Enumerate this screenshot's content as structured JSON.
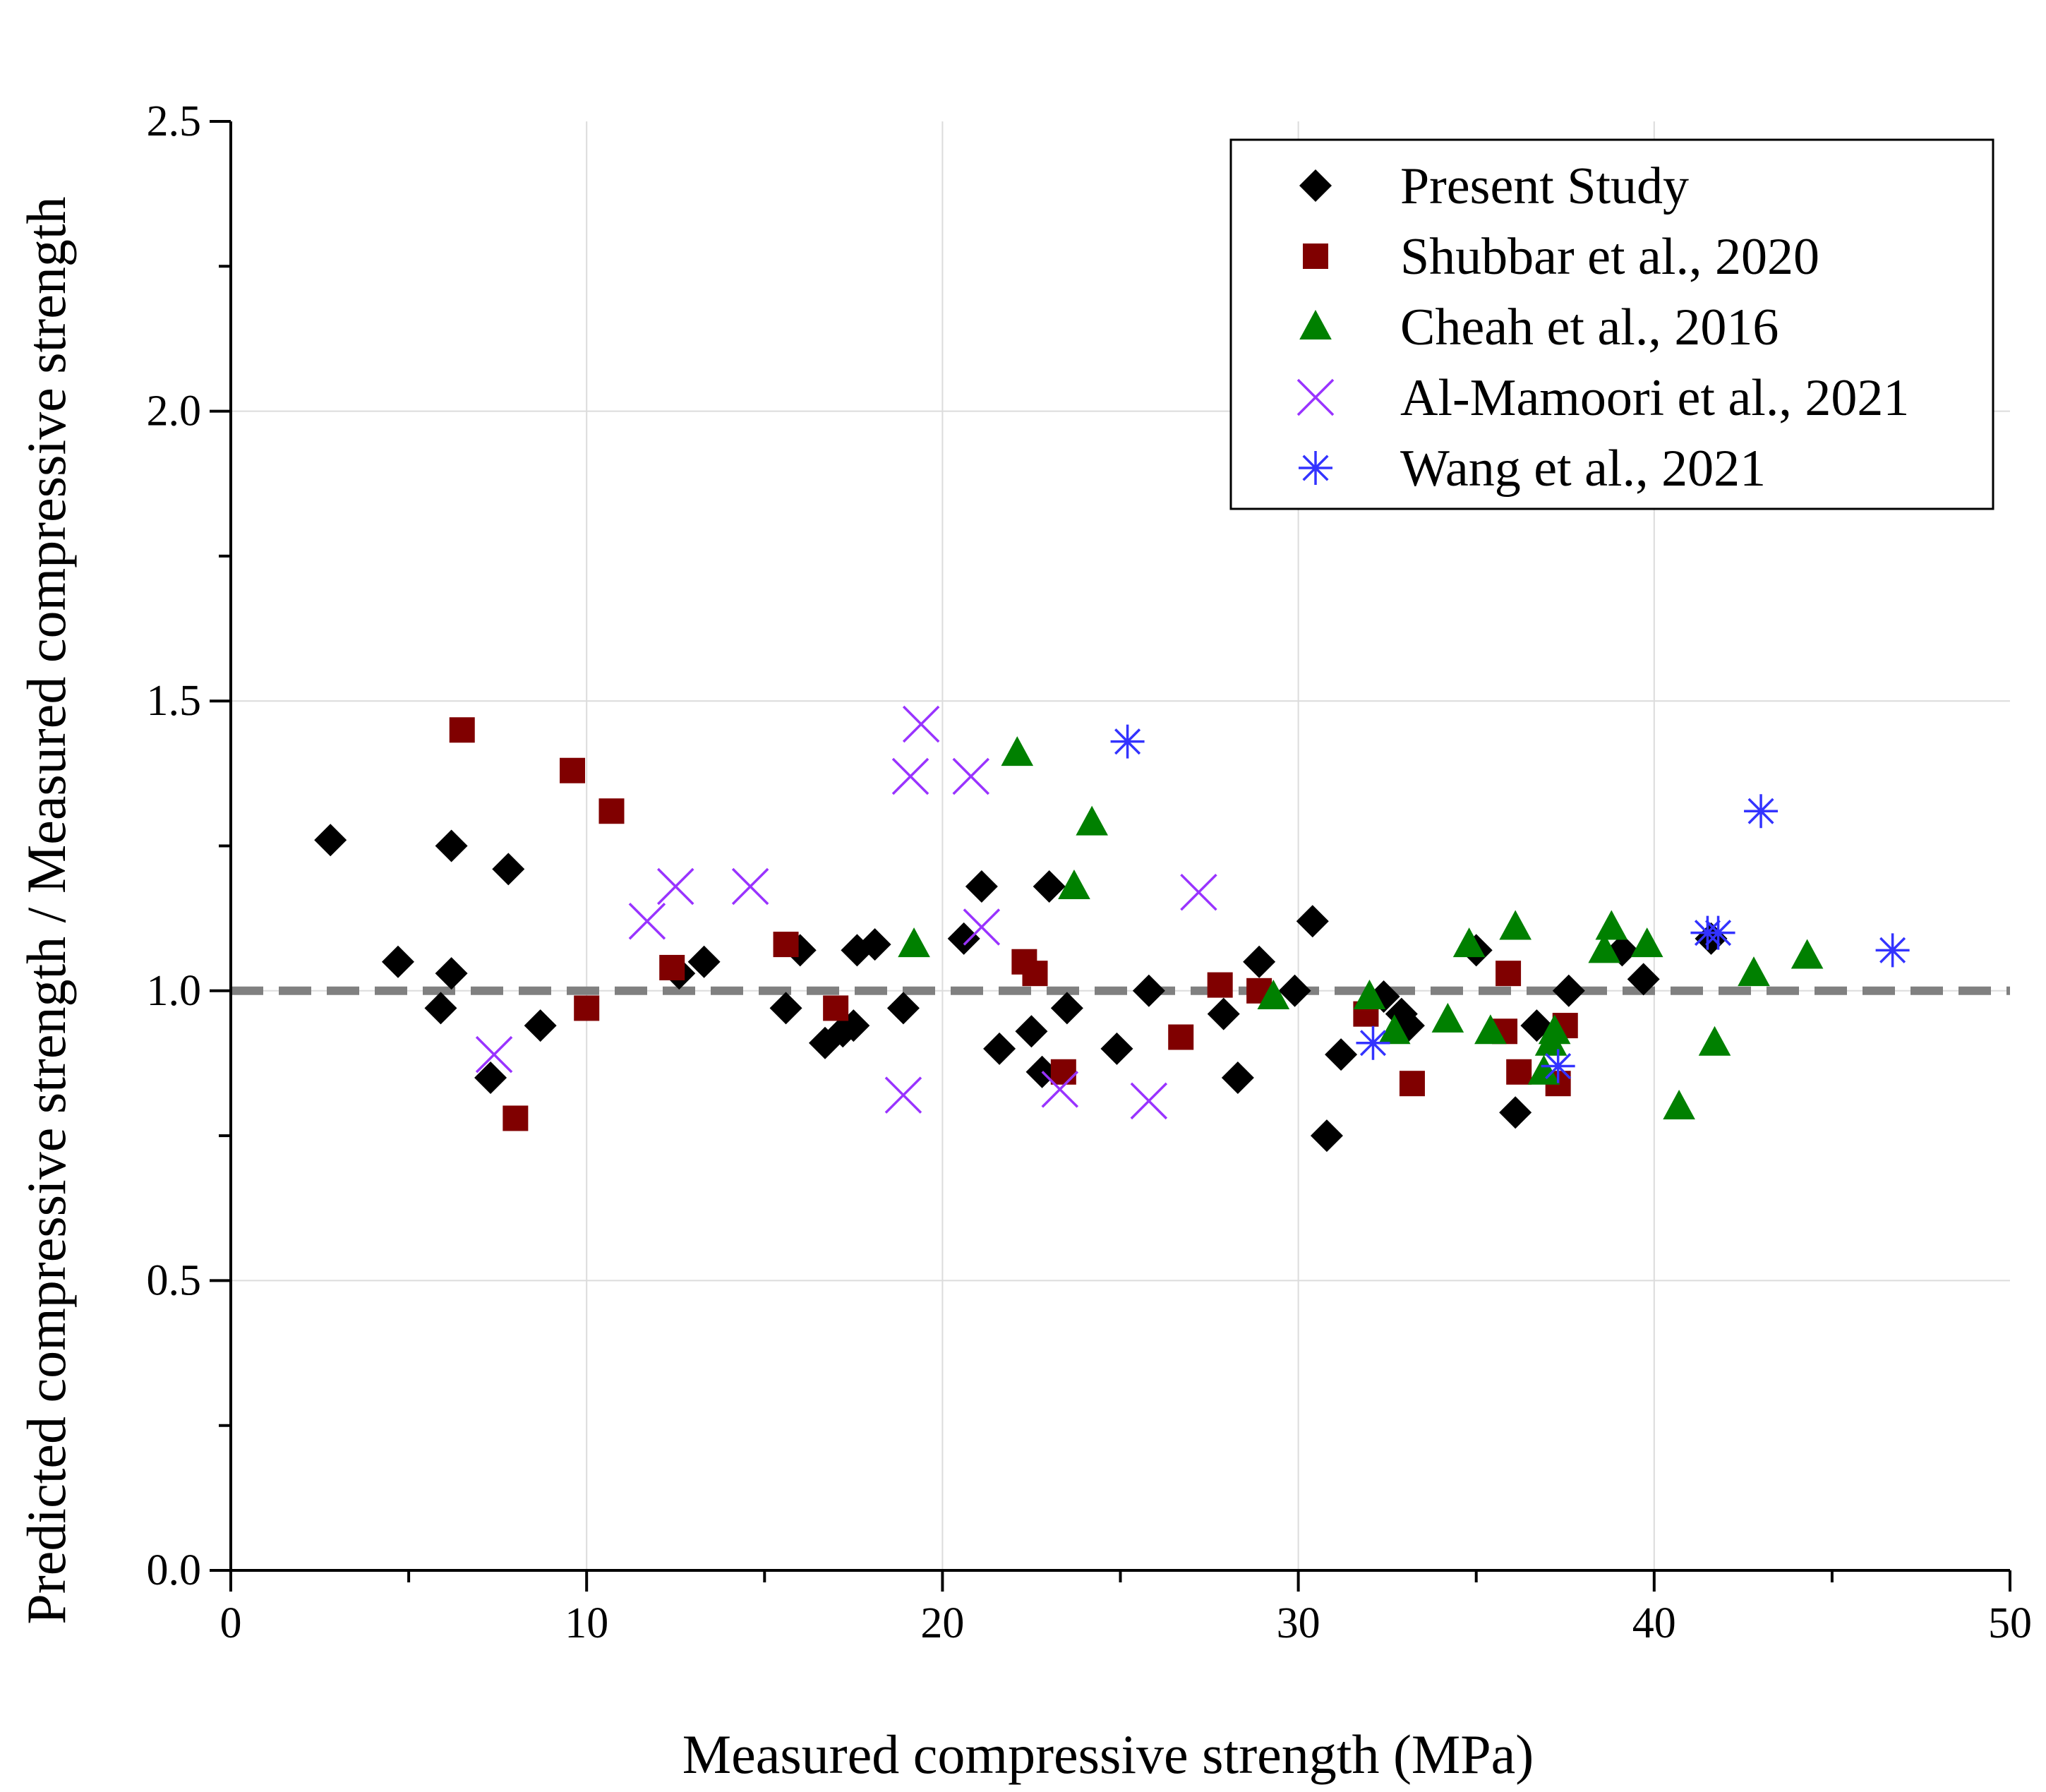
{
  "chart_data": {
    "type": "scatter",
    "title": "",
    "xlabel": "Measured compressive strength (MPa)",
    "ylabel": "Predicted compressive strength / Measured compressive strength",
    "xlim": [
      0,
      50
    ],
    "ylim": [
      0,
      2.5
    ],
    "xticks": [
      0,
      10,
      20,
      30,
      40,
      50
    ],
    "xtick_labels": [
      "0",
      "10",
      "20",
      "30",
      "40",
      "50"
    ],
    "yticks": [
      0,
      0.5,
      1.0,
      1.5,
      2.0,
      2.5
    ],
    "ytick_labels": [
      "0.0",
      "0.5",
      "1.0",
      "1.5",
      "2.0",
      "2.5"
    ],
    "grid": true,
    "legend_position": "top-right",
    "reference_line": {
      "y": 1.0,
      "style": "dashed",
      "color": "#808080"
    },
    "series": [
      {
        "name": "Present Study",
        "marker": "diamond",
        "color": "#000000",
        "points": [
          [
            2.8,
            1.26
          ],
          [
            4.7,
            1.05
          ],
          [
            5.9,
            0.97
          ],
          [
            6.2,
            1.03
          ],
          [
            6.2,
            1.25
          ],
          [
            7.3,
            0.85
          ],
          [
            7.8,
            1.21
          ],
          [
            8.7,
            0.94
          ],
          [
            12.6,
            1.03
          ],
          [
            13.3,
            1.05
          ],
          [
            15.6,
            0.97
          ],
          [
            16.0,
            1.07
          ],
          [
            16.7,
            0.91
          ],
          [
            17.2,
            0.93
          ],
          [
            17.5,
            0.94
          ],
          [
            17.6,
            1.07
          ],
          [
            18.1,
            1.08
          ],
          [
            18.9,
            0.97
          ],
          [
            20.6,
            1.09
          ],
          [
            21.1,
            1.18
          ],
          [
            21.6,
            0.9
          ],
          [
            22.5,
            0.93
          ],
          [
            22.8,
            0.86
          ],
          [
            23.0,
            1.18
          ],
          [
            23.5,
            0.97
          ],
          [
            24.9,
            0.9
          ],
          [
            25.8,
            1.0
          ],
          [
            27.9,
            0.96
          ],
          [
            28.3,
            0.85
          ],
          [
            28.9,
            1.05
          ],
          [
            29.9,
            1.0
          ],
          [
            30.4,
            1.12
          ],
          [
            30.8,
            0.75
          ],
          [
            31.2,
            0.89
          ],
          [
            32.4,
            0.99
          ],
          [
            32.9,
            0.96
          ],
          [
            33.1,
            0.94
          ],
          [
            35.0,
            1.07
          ],
          [
            36.1,
            0.79
          ],
          [
            36.7,
            0.94
          ],
          [
            37.6,
            1.0
          ],
          [
            39.1,
            1.07
          ],
          [
            39.7,
            1.02
          ],
          [
            41.6,
            1.09
          ]
        ]
      },
      {
        "name": "Shubbar et al., 2020",
        "marker": "square",
        "color": "#800000",
        "points": [
          [
            6.5,
            1.45
          ],
          [
            8.0,
            0.78
          ],
          [
            9.6,
            1.38
          ],
          [
            10.0,
            0.97
          ],
          [
            10.7,
            1.31
          ],
          [
            12.4,
            1.04
          ],
          [
            15.6,
            1.08
          ],
          [
            17.0,
            0.97
          ],
          [
            22.3,
            1.05
          ],
          [
            22.6,
            1.03
          ],
          [
            23.4,
            0.86
          ],
          [
            26.7,
            0.92
          ],
          [
            27.8,
            1.01
          ],
          [
            28.9,
            1.0
          ],
          [
            31.9,
            0.96
          ],
          [
            33.2,
            0.84
          ],
          [
            35.8,
            0.93
          ],
          [
            35.9,
            1.03
          ],
          [
            36.2,
            0.86
          ],
          [
            37.3,
            0.84
          ],
          [
            37.5,
            0.94
          ]
        ]
      },
      {
        "name": "Cheah et al., 2016",
        "marker": "triangle",
        "color": "#008000",
        "points": [
          [
            19.2,
            1.08
          ],
          [
            22.1,
            1.41
          ],
          [
            23.7,
            1.18
          ],
          [
            24.2,
            1.29
          ],
          [
            29.3,
            0.99
          ],
          [
            32.0,
            0.99
          ],
          [
            32.7,
            0.93
          ],
          [
            34.2,
            0.95
          ],
          [
            34.8,
            1.08
          ],
          [
            35.4,
            0.93
          ],
          [
            36.1,
            1.11
          ],
          [
            36.9,
            0.86
          ],
          [
            37.1,
            0.91
          ],
          [
            37.2,
            0.93
          ],
          [
            38.6,
            1.07
          ],
          [
            38.8,
            1.11
          ],
          [
            39.8,
            1.08
          ],
          [
            40.7,
            0.8
          ],
          [
            41.7,
            0.91
          ],
          [
            42.8,
            1.03
          ],
          [
            44.3,
            1.06
          ]
        ]
      },
      {
        "name": "Al-Mamoori et al., 2021",
        "marker": "x",
        "color": "#9933ff",
        "points": [
          [
            7.4,
            0.89
          ],
          [
            11.7,
            1.12
          ],
          [
            12.5,
            1.18
          ],
          [
            14.6,
            1.18
          ],
          [
            18.9,
            0.82
          ],
          [
            19.1,
            1.37
          ],
          [
            19.4,
            1.46
          ],
          [
            20.8,
            1.37
          ],
          [
            21.1,
            1.11
          ],
          [
            23.3,
            0.83
          ],
          [
            25.8,
            0.81
          ],
          [
            27.2,
            1.17
          ]
        ]
      },
      {
        "name": "Wang et al., 2021",
        "marker": "asterisk",
        "color": "#3333ff",
        "points": [
          [
            25.2,
            1.43
          ],
          [
            32.1,
            0.91
          ],
          [
            37.3,
            0.87
          ],
          [
            41.5,
            1.1
          ],
          [
            41.8,
            1.1
          ],
          [
            43.0,
            1.31
          ],
          [
            46.7,
            1.07
          ]
        ]
      }
    ]
  }
}
